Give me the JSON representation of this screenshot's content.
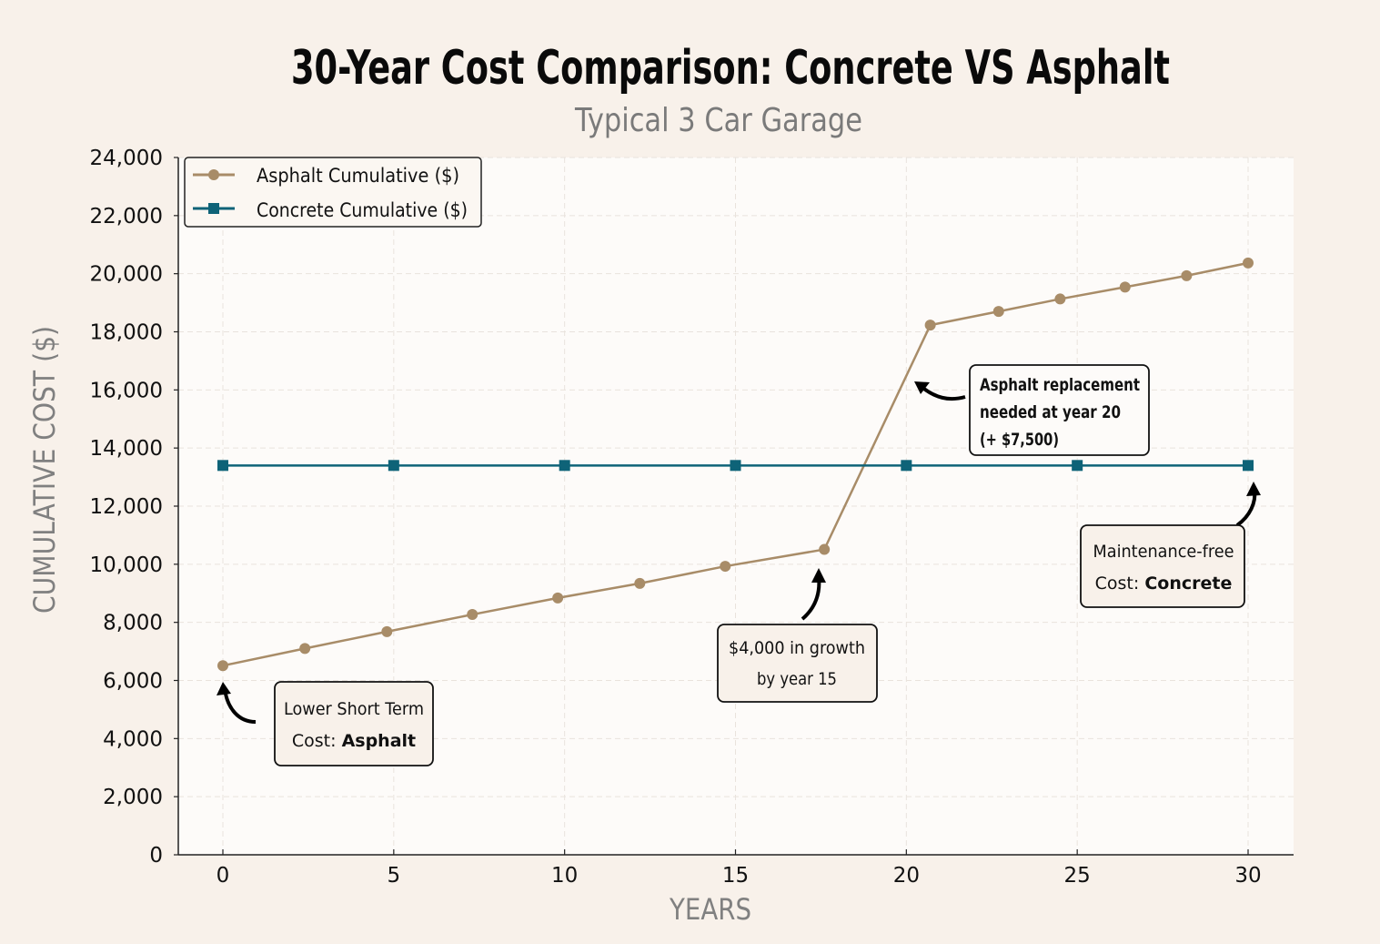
{
  "chart_data": {
    "type": "line",
    "title": "30-Year Cost Comparison: Concrete VS Asphalt",
    "subtitle": "Typical 3 Car Garage",
    "xlabel": "YEARS",
    "ylabel": "CUMULATIVE COST ($)",
    "xlim": [
      -1.3,
      31.3
    ],
    "ylim": [
      0,
      24000
    ],
    "xticks": [
      0,
      5,
      10,
      15,
      20,
      25,
      30
    ],
    "xtick_labels": [
      "0",
      "5",
      "10",
      "15",
      "20",
      "25",
      "30"
    ],
    "yticks": [
      0,
      2000,
      4000,
      6000,
      8000,
      10000,
      12000,
      14000,
      16000,
      18000,
      20000,
      22000,
      24000
    ],
    "ytick_labels": [
      "0",
      "2,000",
      "4,000",
      "6,000",
      "8,000",
      "10,000",
      "12,000",
      "14,000",
      "16,000",
      "18,000",
      "20,000",
      "22,000",
      "24,000"
    ],
    "grid": true,
    "legend_position": "top-left",
    "series": [
      {
        "name": "Asphalt Cumulative ($)",
        "color": "#a88c68",
        "marker": "circle",
        "x": [
          0,
          2.4,
          4.8,
          7.3,
          9.8,
          12.2,
          14.7,
          17.6,
          20.7,
          22.7,
          24.5,
          26.4,
          28.2,
          30
        ],
        "y": [
          6510,
          7100,
          7680,
          8270,
          8840,
          9340,
          9930,
          10510,
          18230,
          18700,
          19130,
          19540,
          19930,
          20370
        ]
      },
      {
        "name": "Concrete Cumulative ($)",
        "color": "#0e6378",
        "marker": "square",
        "x": [
          0,
          5,
          10,
          15,
          20,
          25,
          30
        ],
        "y": [
          13400,
          13400,
          13400,
          13400,
          13400,
          13400,
          13400
        ]
      }
    ],
    "annotations": [
      {
        "line1": "Lower Short Term",
        "line2_prefix": "Cost: ",
        "line2_bold": "Asphalt"
      },
      {
        "line1": "$4,000 in growth",
        "line2": "by year 15"
      },
      {
        "line1": "Asphalt replacement",
        "line2": "needed at year 20",
        "line3": "(+ $7,500)"
      },
      {
        "line1": "Maintenance-free",
        "line2_prefix": "Cost: ",
        "line2_bold": "Concrete"
      }
    ]
  }
}
